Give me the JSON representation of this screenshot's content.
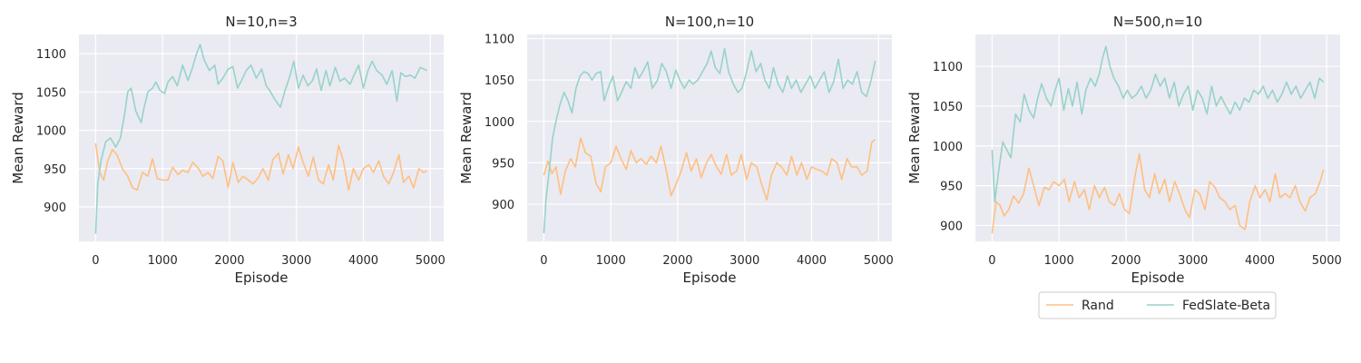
{
  "legend": {
    "items": [
      {
        "label": "Rand",
        "color": "#ffbf80"
      },
      {
        "label": "FedSlate-Beta",
        "color": "#96d3c8"
      }
    ]
  },
  "chart_data": [
    {
      "type": "line",
      "title": "N=10,n=3",
      "xlabel": "Episode",
      "ylabel": "Mean Reward",
      "xlim": [
        -250,
        5200
      ],
      "ylim": [
        855,
        1125
      ],
      "xticks": [
        0,
        1000,
        2000,
        3000,
        4000,
        5000
      ],
      "yticks": [
        900,
        950,
        1000,
        1050,
        1100
      ],
      "grid": true,
      "series": [
        {
          "name": "Rand",
          "color": "#ffbf80",
          "x": [
            0,
            60,
            120,
            180,
            250,
            320,
            400,
            480,
            550,
            620,
            700,
            780,
            850,
            920,
            1000,
            1080,
            1150,
            1230,
            1300,
            1380,
            1450,
            1530,
            1600,
            1680,
            1750,
            1830,
            1900,
            1980,
            2050,
            2130,
            2200,
            2280,
            2350,
            2430,
            2500,
            2580,
            2650,
            2730,
            2800,
            2880,
            2950,
            3030,
            3100,
            3180,
            3250,
            3330,
            3400,
            3480,
            3550,
            3630,
            3700,
            3780,
            3850,
            3930,
            4000,
            4080,
            4150,
            4230,
            4300,
            4380,
            4450,
            4530,
            4600,
            4680,
            4750,
            4830,
            4900,
            4950
          ],
          "y": [
            983,
            945,
            935,
            960,
            975,
            968,
            950,
            940,
            925,
            922,
            945,
            940,
            963,
            937,
            935,
            935,
            952,
            942,
            948,
            945,
            958,
            951,
            940,
            945,
            937,
            966,
            960,
            925,
            958,
            932,
            940,
            935,
            930,
            938,
            950,
            935,
            962,
            970,
            943,
            968,
            950,
            978,
            958,
            940,
            965,
            935,
            930,
            955,
            935,
            980,
            960,
            922,
            950,
            935,
            950,
            955,
            945,
            960,
            940,
            930,
            945,
            968,
            932,
            940,
            925,
            950,
            945,
            947
          ]
        },
        {
          "name": "FedSlate-Beta",
          "color": "#96d3c8",
          "x": [
            0,
            30,
            80,
            150,
            220,
            300,
            370,
            430,
            480,
            530,
            600,
            680,
            720,
            780,
            850,
            900,
            960,
            1030,
            1080,
            1150,
            1220,
            1300,
            1380,
            1440,
            1500,
            1560,
            1620,
            1700,
            1780,
            1830,
            1900,
            1980,
            2050,
            2120,
            2180,
            2250,
            2320,
            2400,
            2480,
            2550,
            2600,
            2680,
            2760,
            2830,
            2900,
            2960,
            3030,
            3100,
            3170,
            3240,
            3300,
            3370,
            3440,
            3500,
            3580,
            3650,
            3720,
            3800,
            3860,
            3930,
            4000,
            4070,
            4130,
            4200,
            4280,
            4350,
            4430,
            4500,
            4560,
            4630,
            4700,
            4770,
            4850,
            4900,
            4950
          ],
          "y": [
            865,
            930,
            960,
            985,
            990,
            978,
            990,
            1020,
            1050,
            1055,
            1025,
            1010,
            1028,
            1050,
            1055,
            1063,
            1052,
            1048,
            1063,
            1070,
            1058,
            1085,
            1065,
            1080,
            1098,
            1112,
            1092,
            1078,
            1085,
            1060,
            1068,
            1080,
            1083,
            1055,
            1065,
            1078,
            1085,
            1068,
            1080,
            1058,
            1052,
            1040,
            1030,
            1052,
            1070,
            1090,
            1055,
            1072,
            1058,
            1065,
            1080,
            1052,
            1078,
            1058,
            1082,
            1064,
            1068,
            1060,
            1072,
            1085,
            1055,
            1078,
            1090,
            1078,
            1072,
            1060,
            1078,
            1038,
            1075,
            1070,
            1072,
            1068,
            1082,
            1080,
            1078
          ]
        }
      ]
    },
    {
      "type": "line",
      "title": "N=100,n=10",
      "xlabel": "Episode",
      "ylabel": "Mean Reward",
      "xlim": [
        -250,
        5200
      ],
      "ylim": [
        855,
        1105
      ],
      "xticks": [
        0,
        1000,
        2000,
        3000,
        4000,
        5000
      ],
      "yticks": [
        900,
        950,
        1000,
        1050,
        1100
      ],
      "grid": true,
      "series": [
        {
          "name": "Rand",
          "color": "#ffbf80",
          "x": [
            0,
            60,
            120,
            180,
            250,
            320,
            400,
            470,
            550,
            620,
            700,
            780,
            850,
            920,
            1000,
            1080,
            1150,
            1230,
            1300,
            1380,
            1450,
            1530,
            1600,
            1680,
            1750,
            1830,
            1900,
            1980,
            2050,
            2130,
            2200,
            2280,
            2350,
            2430,
            2500,
            2580,
            2650,
            2730,
            2800,
            2880,
            2950,
            3030,
            3100,
            3180,
            3250,
            3330,
            3400,
            3480,
            3550,
            3630,
            3700,
            3780,
            3850,
            3930,
            4000,
            4080,
            4150,
            4230,
            4300,
            4380,
            4450,
            4530,
            4600,
            4680,
            4750,
            4830,
            4900,
            4950
          ],
          "y": [
            935,
            952,
            937,
            945,
            912,
            940,
            955,
            945,
            980,
            962,
            958,
            925,
            915,
            945,
            950,
            970,
            955,
            942,
            965,
            950,
            955,
            948,
            958,
            950,
            970,
            940,
            910,
            925,
            940,
            962,
            940,
            955,
            932,
            950,
            960,
            945,
            936,
            960,
            935,
            940,
            960,
            930,
            950,
            945,
            925,
            905,
            935,
            950,
            945,
            935,
            958,
            935,
            950,
            930,
            945,
            942,
            940,
            935,
            955,
            950,
            930,
            955,
            945,
            945,
            935,
            940,
            975,
            978
          ]
        },
        {
          "name": "FedSlate-Beta",
          "color": "#96d3c8",
          "x": [
            0,
            30,
            80,
            130,
            180,
            240,
            300,
            360,
            420,
            480,
            540,
            600,
            660,
            720,
            780,
            850,
            900,
            960,
            1030,
            1100,
            1160,
            1230,
            1300,
            1360,
            1420,
            1480,
            1550,
            1620,
            1700,
            1760,
            1830,
            1900,
            1970,
            2030,
            2100,
            2170,
            2230,
            2300,
            2370,
            2440,
            2500,
            2560,
            2630,
            2700,
            2760,
            2830,
            2900,
            2960,
            3030,
            3100,
            3170,
            3240,
            3300,
            3370,
            3430,
            3500,
            3570,
            3640,
            3700,
            3770,
            3840,
            3910,
            3980,
            4050,
            4120,
            4190,
            4260,
            4330,
            4400,
            4470,
            4540,
            4610,
            4680,
            4750,
            4820,
            4890,
            4950
          ],
          "y": [
            865,
            905,
            940,
            980,
            1000,
            1020,
            1035,
            1025,
            1010,
            1040,
            1055,
            1060,
            1058,
            1050,
            1058,
            1060,
            1025,
            1040,
            1055,
            1025,
            1035,
            1048,
            1040,
            1065,
            1052,
            1060,
            1072,
            1040,
            1050,
            1070,
            1060,
            1040,
            1062,
            1050,
            1040,
            1050,
            1045,
            1050,
            1060,
            1070,
            1085,
            1065,
            1058,
            1088,
            1060,
            1045,
            1035,
            1040,
            1060,
            1085,
            1060,
            1070,
            1050,
            1040,
            1065,
            1045,
            1035,
            1055,
            1040,
            1050,
            1035,
            1045,
            1055,
            1040,
            1050,
            1060,
            1035,
            1048,
            1075,
            1040,
            1050,
            1045,
            1060,
            1035,
            1030,
            1050,
            1073
          ]
        }
      ]
    },
    {
      "type": "line",
      "title": "N=500,n=10",
      "xlabel": "Episode",
      "ylabel": "Mean Reward",
      "xlim": [
        -250,
        5200
      ],
      "ylim": [
        880,
        1140
      ],
      "xticks": [
        0,
        1000,
        2000,
        3000,
        4000,
        5000
      ],
      "yticks": [
        900,
        950,
        1000,
        1050,
        1100
      ],
      "grid": true,
      "series": [
        {
          "name": "Rand",
          "color": "#ffbf80",
          "x": [
            0,
            60,
            120,
            180,
            250,
            320,
            400,
            470,
            550,
            620,
            700,
            780,
            850,
            920,
            1000,
            1080,
            1150,
            1230,
            1300,
            1380,
            1450,
            1530,
            1600,
            1680,
            1750,
            1830,
            1900,
            1980,
            2050,
            2130,
            2200,
            2280,
            2350,
            2430,
            2500,
            2580,
            2650,
            2730,
            2800,
            2880,
            2950,
            3030,
            3100,
            3180,
            3250,
            3330,
            3400,
            3480,
            3550,
            3630,
            3700,
            3780,
            3850,
            3930,
            4000,
            4080,
            4150,
            4230,
            4300,
            4380,
            4450,
            4530,
            4600,
            4680,
            4750,
            4830,
            4900,
            4950
          ],
          "y": [
            890,
            930,
            925,
            912,
            920,
            937,
            928,
            940,
            972,
            950,
            925,
            948,
            945,
            955,
            950,
            958,
            930,
            955,
            935,
            945,
            920,
            950,
            935,
            948,
            930,
            925,
            940,
            920,
            915,
            960,
            990,
            945,
            935,
            965,
            940,
            958,
            930,
            955,
            940,
            920,
            910,
            945,
            940,
            920,
            955,
            948,
            935,
            930,
            920,
            925,
            900,
            895,
            930,
            950,
            935,
            945,
            930,
            965,
            935,
            940,
            935,
            950,
            930,
            918,
            935,
            940,
            955,
            970
          ]
        },
        {
          "name": "FedSlate-Beta",
          "color": "#96d3c8",
          "x": [
            0,
            40,
            100,
            160,
            220,
            280,
            350,
            420,
            480,
            550,
            620,
            680,
            740,
            810,
            880,
            940,
            1000,
            1070,
            1140,
            1200,
            1270,
            1340,
            1400,
            1470,
            1540,
            1600,
            1650,
            1700,
            1760,
            1820,
            1890,
            1960,
            2020,
            2090,
            2160,
            2230,
            2300,
            2370,
            2440,
            2510,
            2580,
            2650,
            2720,
            2790,
            2860,
            2930,
            3000,
            3070,
            3140,
            3210,
            3280,
            3350,
            3420,
            3490,
            3560,
            3630,
            3700,
            3770,
            3840,
            3910,
            3980,
            4050,
            4120,
            4190,
            4260,
            4330,
            4400,
            4470,
            4540,
            4610,
            4680,
            4750,
            4820,
            4890,
            4950
          ],
          "y": [
            995,
            930,
            970,
            1005,
            995,
            985,
            1040,
            1030,
            1065,
            1045,
            1035,
            1060,
            1078,
            1060,
            1050,
            1070,
            1085,
            1045,
            1072,
            1050,
            1080,
            1040,
            1070,
            1085,
            1075,
            1090,
            1110,
            1125,
            1100,
            1085,
            1075,
            1060,
            1070,
            1060,
            1065,
            1075,
            1060,
            1070,
            1090,
            1075,
            1085,
            1060,
            1080,
            1050,
            1065,
            1075,
            1045,
            1070,
            1060,
            1040,
            1075,
            1050,
            1062,
            1050,
            1040,
            1055,
            1045,
            1060,
            1055,
            1070,
            1065,
            1075,
            1060,
            1070,
            1055,
            1065,
            1080,
            1065,
            1075,
            1060,
            1070,
            1080,
            1060,
            1085,
            1080
          ]
        }
      ]
    }
  ]
}
